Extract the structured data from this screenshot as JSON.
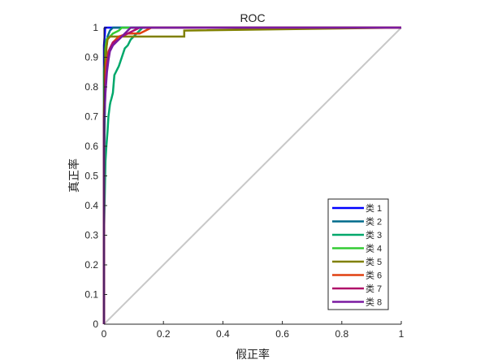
{
  "chart_data": {
    "type": "line",
    "title": "ROC",
    "xlabel": "假正率",
    "ylabel": "真正率",
    "xlim": [
      0,
      1
    ],
    "ylim": [
      0,
      1
    ],
    "xticks": [
      "0",
      "0.2",
      "0.4",
      "0.6",
      "0.8",
      "1"
    ],
    "yticks": [
      "0",
      "0.1",
      "0.2",
      "0.3",
      "0.4",
      "0.5",
      "0.6",
      "0.7",
      "0.8",
      "0.9",
      "1"
    ],
    "grid": false,
    "legend_position": "bottom-right",
    "diagonal": {
      "points": [
        [
          0,
          0
        ],
        [
          1,
          1
        ]
      ],
      "color": "#c8c8c8"
    },
    "series": [
      {
        "name": "类 1",
        "color": "#0000ff",
        "points": [
          [
            0,
            0
          ],
          [
            0,
            0.94
          ],
          [
            0.003,
            0.98
          ],
          [
            0.004,
            1
          ],
          [
            1,
            1
          ]
        ]
      },
      {
        "name": "类 2",
        "color": "#006b8c",
        "points": [
          [
            0,
            0
          ],
          [
            0,
            0.5
          ],
          [
            0.003,
            0.72
          ],
          [
            0.006,
            0.86
          ],
          [
            0.008,
            0.93
          ],
          [
            0.012,
            0.97
          ],
          [
            0.02,
            0.99
          ],
          [
            0.03,
            1
          ],
          [
            1,
            1
          ]
        ]
      },
      {
        "name": "类 3",
        "color": "#00a86b",
        "points": [
          [
            0,
            0
          ],
          [
            0,
            0.3
          ],
          [
            0.003,
            0.45
          ],
          [
            0.005,
            0.55
          ],
          [
            0.008,
            0.6
          ],
          [
            0.012,
            0.65
          ],
          [
            0.015,
            0.7
          ],
          [
            0.02,
            0.74
          ],
          [
            0.022,
            0.75
          ],
          [
            0.025,
            0.76
          ],
          [
            0.03,
            0.78
          ],
          [
            0.035,
            0.84
          ],
          [
            0.04,
            0.85
          ],
          [
            0.045,
            0.86
          ],
          [
            0.05,
            0.87
          ],
          [
            0.06,
            0.9
          ],
          [
            0.07,
            0.93
          ],
          [
            0.08,
            0.94
          ],
          [
            0.09,
            0.96
          ],
          [
            0.1,
            0.97
          ],
          [
            0.11,
            0.98
          ],
          [
            0.12,
            0.99
          ],
          [
            0.13,
            1
          ],
          [
            1,
            1
          ]
        ]
      },
      {
        "name": "类 4",
        "color": "#33cc33",
        "points": [
          [
            0,
            0
          ],
          [
            0,
            0.85
          ],
          [
            0.005,
            0.93
          ],
          [
            0.008,
            0.96
          ],
          [
            0.02,
            0.97
          ],
          [
            0.03,
            0.98
          ],
          [
            0.05,
            0.99
          ],
          [
            0.06,
            1
          ],
          [
            1,
            1
          ]
        ]
      },
      {
        "name": "类 5",
        "color": "#808000",
        "points": [
          [
            0,
            0
          ],
          [
            0,
            0.72
          ],
          [
            0.004,
            0.87
          ],
          [
            0.008,
            0.93
          ],
          [
            0.012,
            0.96
          ],
          [
            0.02,
            0.97
          ],
          [
            0.05,
            0.97
          ],
          [
            0.1,
            0.97
          ],
          [
            0.2,
            0.97
          ],
          [
            0.27,
            0.97
          ],
          [
            0.27,
            0.99
          ],
          [
            1,
            1
          ]
        ]
      },
      {
        "name": "类 6",
        "color": "#e04010",
        "points": [
          [
            0,
            0
          ],
          [
            0,
            0.7
          ],
          [
            0.004,
            0.82
          ],
          [
            0.008,
            0.88
          ],
          [
            0.012,
            0.9
          ],
          [
            0.015,
            0.92
          ],
          [
            0.02,
            0.93
          ],
          [
            0.03,
            0.95
          ],
          [
            0.05,
            0.97
          ],
          [
            0.08,
            0.98
          ],
          [
            0.12,
            0.98
          ],
          [
            0.14,
            0.99
          ],
          [
            0.16,
            1
          ],
          [
            1,
            1
          ]
        ]
      },
      {
        "name": "类 7",
        "color": "#b0106a",
        "points": [
          [
            0,
            0
          ],
          [
            0,
            0.7
          ],
          [
            0.005,
            0.8
          ],
          [
            0.01,
            0.87
          ],
          [
            0.015,
            0.91
          ],
          [
            0.02,
            0.93
          ],
          [
            0.025,
            0.94
          ],
          [
            0.03,
            0.95
          ],
          [
            0.05,
            0.96
          ],
          [
            0.06,
            0.97
          ],
          [
            0.08,
            0.98
          ],
          [
            0.1,
            0.99
          ],
          [
            0.12,
            1
          ],
          [
            1,
            1
          ]
        ]
      },
      {
        "name": "类 8",
        "color": "#7a1aa0",
        "points": [
          [
            0,
            0
          ],
          [
            0,
            0.68
          ],
          [
            0.005,
            0.78
          ],
          [
            0.01,
            0.85
          ],
          [
            0.015,
            0.89
          ],
          [
            0.02,
            0.92
          ],
          [
            0.03,
            0.94
          ],
          [
            0.04,
            0.95
          ],
          [
            0.05,
            0.96
          ],
          [
            0.06,
            0.97
          ],
          [
            0.07,
            0.98
          ],
          [
            0.08,
            0.99
          ],
          [
            0.09,
            1
          ],
          [
            1,
            1
          ]
        ]
      }
    ]
  }
}
